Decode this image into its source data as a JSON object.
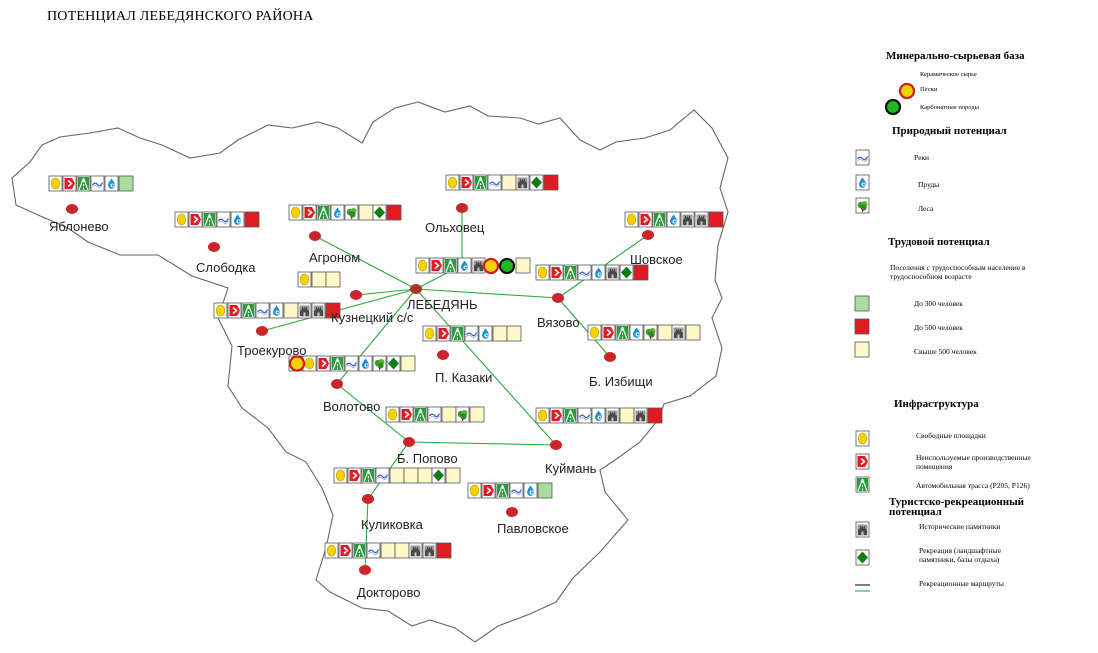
{
  "title": "ПОТЕНЦИАЛ ЛЕБЕДЯНСКОГО РАЙОНА",
  "colors": {
    "settlement_dot": "#c9252b",
    "route_line": "#2fa83a",
    "border": "#666666",
    "workforce_low": "#a8dca0",
    "workforce_mid": "#e01b22",
    "workforce_high": "#fff8c8",
    "sand": "#f2d200",
    "carbonate": "#1fb81f"
  },
  "places": {
    "yablonevo": "Яблонево",
    "slobodka": "Слободка",
    "agronom": "Агроном",
    "olkhovets": "Ольховец",
    "lebedyan": "ЛЕБЕДЯНЬ",
    "kuznetsky": "Кузнецкий с/с",
    "shovskoe": "Шовское",
    "vyazovo": "Вязово",
    "troekurovo": "Троекурово",
    "p_kazaki": "П. Казаки",
    "b_izbishchi": "Б. Избищи",
    "volotovo": "Волотово",
    "b_popovo": "Б. Попово",
    "kuyman": "Куймань",
    "kulikovka": "Куликовка",
    "pavlovskoe": "Павловское",
    "doktorovo": "Докторово"
  },
  "legend": {
    "minerals": {
      "title": "Минерально-сырьевая база",
      "ceramic": "Керамическое сырье",
      "sand": "Пески",
      "carbonate": "Карбонатные породы"
    },
    "nature": {
      "title": "Природный потенциал",
      "rivers": "Реки",
      "ponds": "Пруды",
      "forests": "Леса"
    },
    "labor": {
      "title": "Трудовой потенциал",
      "description": "Поселения с трудоспособным население в трудоспособном возрасте",
      "low": "До 300 человек",
      "mid": "До 500 человек",
      "high": "Свыше 500 человек"
    },
    "infra": {
      "title": "Инфраструктура",
      "sites": "Свободные площадки",
      "premises": "Неиспользуемые производственные помещения",
      "highway": "Автомобильная трасса (Р205, Р126)"
    },
    "tourism": {
      "title": "Туристско-рекреационный потенциал",
      "monuments": "Исторические памятники",
      "recreation": "Рекреация (ландшафтные памятники, базы отдыха)",
      "routes": "Рекреационные маршруты"
    }
  }
}
